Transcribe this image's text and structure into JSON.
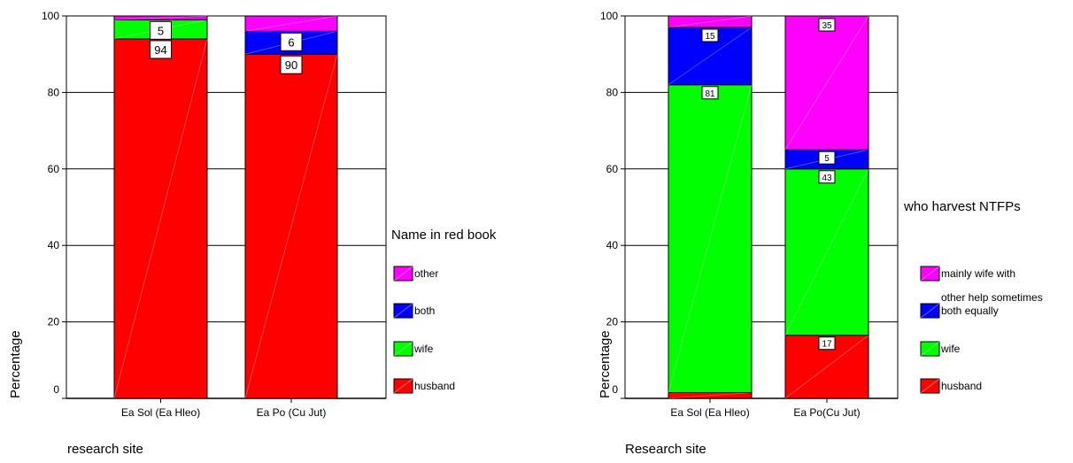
{
  "chart_data": [
    {
      "type": "bar",
      "stacked": true,
      "percent": true,
      "categories": [
        "Ea Sol (Ea Hleo)",
        "Ea Po (Cu Jut)"
      ],
      "series": [
        {
          "name": "husband",
          "color": "#ff0000",
          "values": [
            94,
            90
          ],
          "labels": [
            "94",
            "90"
          ]
        },
        {
          "name": "wife",
          "color": "#00ff00",
          "values": [
            5,
            0
          ],
          "labels": [
            "5",
            ""
          ]
        },
        {
          "name": "both",
          "color": "#0000ff",
          "values": [
            0,
            6
          ],
          "labels": [
            "",
            "6"
          ]
        },
        {
          "name": "other",
          "color": "#ff00ff",
          "values": [
            1,
            4
          ],
          "labels": [
            "",
            ""
          ]
        }
      ],
      "legend_title": "Name in red book",
      "legend_position": "right",
      "xlabel": "research site",
      "ylabel": "Percentage",
      "ylim": [
        0,
        100
      ],
      "yticks": [
        0,
        20,
        40,
        60,
        80,
        100
      ],
      "grid": true
    },
    {
      "type": "bar",
      "stacked": true,
      "percent": true,
      "categories": [
        "Ea Sol (Ea Hleo)",
        "Ea Po(Cu Jut)"
      ],
      "series": [
        {
          "name": "husband",
          "color": "#ff0000",
          "values": [
            1.5,
            16.5
          ],
          "labels": [
            "",
            "17"
          ]
        },
        {
          "name": "wife",
          "color": "#00ff00",
          "values": [
            80.5,
            43.5
          ],
          "labels": [
            "81",
            "43"
          ]
        },
        {
          "name": "both equally",
          "color": "#0000ff",
          "values": [
            15,
            5
          ],
          "labels": [
            "15",
            "5"
          ]
        },
        {
          "name": "mainly wife with other help sometimes",
          "lines": [
            "mainly wife with",
            "other help sometimes"
          ],
          "color": "#ff00ff",
          "values": [
            3,
            35
          ],
          "labels": [
            "",
            "35"
          ]
        }
      ],
      "legend_title": "who harvest NTFPs",
      "legend_position": "right",
      "xlabel": "Research site",
      "ylabel": "Percentage",
      "ylim": [
        0,
        100
      ],
      "yticks": [
        0,
        20,
        40,
        60,
        80,
        100
      ],
      "grid": true
    }
  ]
}
